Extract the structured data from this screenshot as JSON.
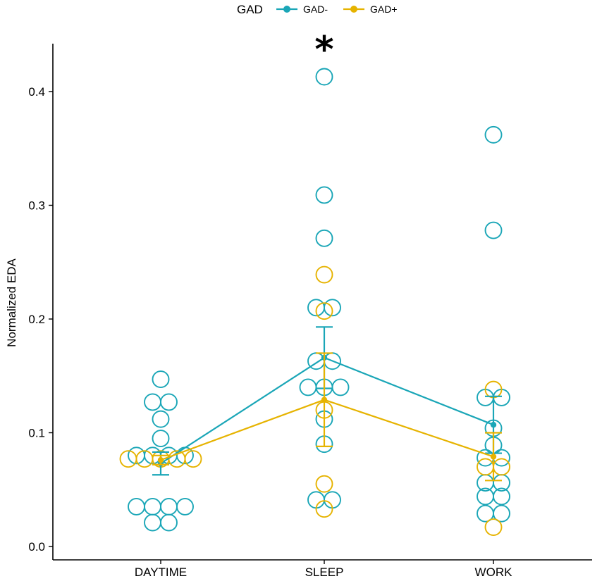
{
  "legend": {
    "title": "GAD",
    "entries": [
      {
        "label": "GAD-",
        "color": "#1aa6b7"
      },
      {
        "label": "GAD+",
        "color": "#e6b300"
      }
    ]
  },
  "annotation": {
    "text": "*",
    "category": "SLEEP"
  },
  "chart_data": {
    "type": "scatter",
    "title": "",
    "xlabel": "",
    "ylabel": "Normalized EDA",
    "categories": [
      "DAYTIME",
      "SLEEP",
      "WORK"
    ],
    "ylim": [
      0.0,
      0.43
    ],
    "yticks": [
      0.0,
      0.1,
      0.2,
      0.3,
      0.4
    ],
    "ytick_labels": [
      "0.0",
      "0.1",
      "0.2",
      "0.3",
      "0.4"
    ],
    "grid": false,
    "legend_position": "top",
    "series": [
      {
        "name": "GAD-",
        "color": "#1aa6b7",
        "mean": [
          0.073,
          0.166,
          0.107
        ],
        "error": [
          0.01,
          0.027,
          0.025
        ],
        "points": [
          [
            0.147,
            0.127,
            0.127,
            0.112,
            0.095,
            0.08,
            0.08,
            0.08,
            0.08,
            0.035,
            0.035,
            0.035,
            0.035,
            0.021,
            0.021
          ],
          [
            0.413,
            0.309,
            0.271,
            0.21,
            0.21,
            0.163,
            0.163,
            0.14,
            0.14,
            0.14,
            0.112,
            0.09,
            0.041,
            0.041
          ],
          [
            0.362,
            0.278,
            0.131,
            0.131,
            0.104,
            0.089,
            0.078,
            0.078,
            0.056,
            0.056,
            0.044,
            0.044,
            0.029,
            0.029
          ]
        ]
      },
      {
        "name": "GAD+",
        "color": "#e6b300",
        "mean": [
          0.076,
          0.129,
          0.079
        ],
        "error": [
          0.004,
          0.041,
          0.021
        ],
        "points": [
          [
            0.077,
            0.077,
            0.077,
            0.077,
            0.077
          ],
          [
            0.239,
            0.207,
            0.12,
            0.055,
            0.033
          ],
          [
            0.138,
            0.07,
            0.07,
            0.017
          ]
        ]
      }
    ]
  }
}
